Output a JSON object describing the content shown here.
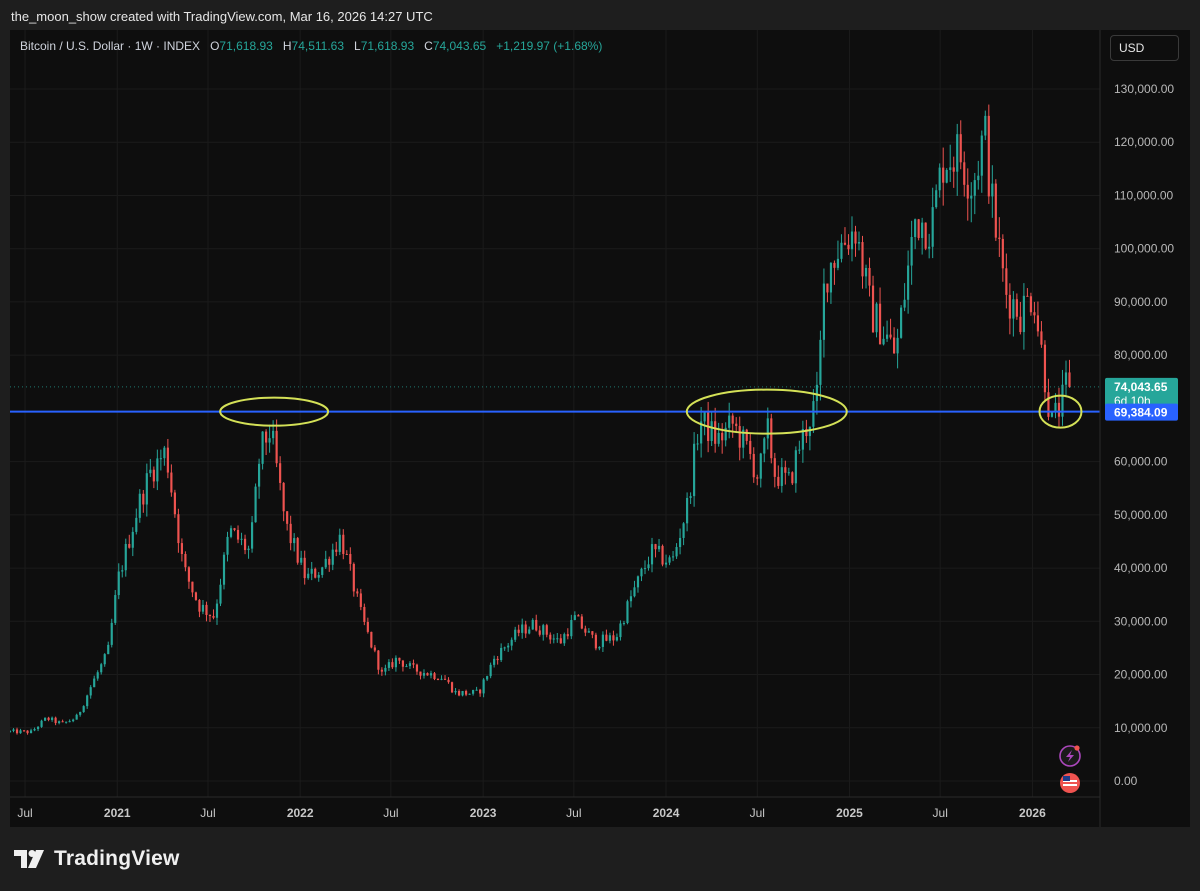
{
  "header": {
    "caption": "the_moon_show created with TradingView.com, Mar 16, 2026 14:27 UTC"
  },
  "legend": {
    "symbol": "Bitcoin / U.S. Dollar · 1W · INDEX",
    "open_label": "O",
    "open": "71,618.93",
    "high_label": "H",
    "high": "74,511.63",
    "low_label": "L",
    "low": "71,618.93",
    "close_label": "C",
    "close": "74,043.65",
    "change": "+1,219.97 (+1.68%)"
  },
  "currency_button": "USD",
  "brand": {
    "name": "TradingView"
  },
  "colors": {
    "up": "#26a69a",
    "down": "#ef5350",
    "support_line": "#2962ff",
    "highlight_ellipse": "#d4e157",
    "price_tag": "#26a69a",
    "line_tag": "#2962ff"
  },
  "icons": [
    "lightning-icon",
    "us-flag-icon",
    "tradingview-logo-icon"
  ],
  "chart_data": {
    "type": "candlestick",
    "interval": "1W",
    "symbol": "Bitcoin / U.S. Dollar",
    "y_ticks": [
      "130,000.00",
      "120,000.00",
      "110,000.00",
      "100,000.00",
      "90,000.00",
      "80,000.00",
      "60,000.00",
      "50,000.00",
      "40,000.00",
      "30,000.00",
      "20,000.00",
      "10,000.00",
      "0.00"
    ],
    "ylim": [
      0,
      130000
    ],
    "x_ticks": [
      "Jul",
      "2021",
      "Jul",
      "2022",
      "Jul",
      "2023",
      "Jul",
      "2024",
      "Jul",
      "2025",
      "Jul",
      "2026"
    ],
    "last_price": {
      "value": 74043.65,
      "label": "74,043.65",
      "countdown": "6d 10h"
    },
    "horizontal_line": {
      "value": 69384.09,
      "label": "69,384.09"
    },
    "highlighted_regions": [
      {
        "period": "Nov 2021",
        "level": 69000
      },
      {
        "period": "Mar–Oct 2024",
        "level": 69000
      },
      {
        "period": "Feb–Mar 2026",
        "level": 69000
      }
    ],
    "series": [
      {
        "name": "Bitcoin / U.S. Dollar",
        "anchors": [
          [
            "2020-06-01",
            9300
          ],
          [
            "2020-07-20",
            9200
          ],
          [
            "2020-08-20",
            11800
          ],
          [
            "2020-09-20",
            10700
          ],
          [
            "2020-10-20",
            12000
          ],
          [
            "2020-11-20",
            18500
          ],
          [
            "2020-12-20",
            24000
          ],
          [
            "2021-01-10",
            38000
          ],
          [
            "2021-02-20",
            52000
          ],
          [
            "2021-03-15",
            58000
          ],
          [
            "2021-04-15",
            62000
          ],
          [
            "2021-05-20",
            40000
          ],
          [
            "2021-06-20",
            33000
          ],
          [
            "2021-07-20",
            31000
          ],
          [
            "2021-08-20",
            47000
          ],
          [
            "2021-09-10",
            45000
          ],
          [
            "2021-09-30",
            43000
          ],
          [
            "2021-10-20",
            62000
          ],
          [
            "2021-11-10",
            66000
          ],
          [
            "2021-12-10",
            48000
          ],
          [
            "2022-01-20",
            38000
          ],
          [
            "2022-02-20",
            40000
          ],
          [
            "2022-03-30",
            46000
          ],
          [
            "2022-05-10",
            31000
          ],
          [
            "2022-06-20",
            20000
          ],
          [
            "2022-07-20",
            23000
          ],
          [
            "2022-08-20",
            21000
          ],
          [
            "2022-10-20",
            19500
          ],
          [
            "2022-11-15",
            16500
          ],
          [
            "2022-12-30",
            16500
          ],
          [
            "2023-01-30",
            23000
          ],
          [
            "2023-03-20",
            28000
          ],
          [
            "2023-04-20",
            29500
          ],
          [
            "2023-06-10",
            26000
          ],
          [
            "2023-07-10",
            30500
          ],
          [
            "2023-08-20",
            26000
          ],
          [
            "2023-09-30",
            27000
          ],
          [
            "2023-10-30",
            34500
          ],
          [
            "2023-12-10",
            43000
          ],
          [
            "2024-01-20",
            41000
          ],
          [
            "2024-02-20",
            52000
          ],
          [
            "2024-03-15",
            68000
          ],
          [
            "2024-04-20",
            64000
          ],
          [
            "2024-05-20",
            67000
          ],
          [
            "2024-06-20",
            62000
          ],
          [
            "2024-07-10",
            57000
          ],
          [
            "2024-07-30",
            66000
          ],
          [
            "2024-08-10",
            58000
          ],
          [
            "2024-09-10",
            56000
          ],
          [
            "2024-09-30",
            63000
          ],
          [
            "2024-10-20",
            68000
          ],
          [
            "2024-11-05",
            72000
          ],
          [
            "2024-11-20",
            95000
          ],
          [
            "2024-12-15",
            100000
          ],
          [
            "2025-01-20",
            104000
          ],
          [
            "2025-02-20",
            88000
          ],
          [
            "2025-03-20",
            84000
          ],
          [
            "2025-04-10",
            80000
          ],
          [
            "2025-05-20",
            106000
          ],
          [
            "2025-06-20",
            104000
          ],
          [
            "2025-07-15",
            117000
          ],
          [
            "2025-08-15",
            118000
          ],
          [
            "2025-09-10",
            112000
          ],
          [
            "2025-10-05",
            122000
          ],
          [
            "2025-10-20",
            108000
          ],
          [
            "2025-11-15",
            92000
          ],
          [
            "2025-12-15",
            88000
          ],
          [
            "2026-01-10",
            92000
          ],
          [
            "2026-01-30",
            78000
          ],
          [
            "2026-02-15",
            67000
          ],
          [
            "2026-03-10",
            71618.93
          ],
          [
            "2026-03-16",
            74043.65
          ]
        ]
      }
    ]
  }
}
